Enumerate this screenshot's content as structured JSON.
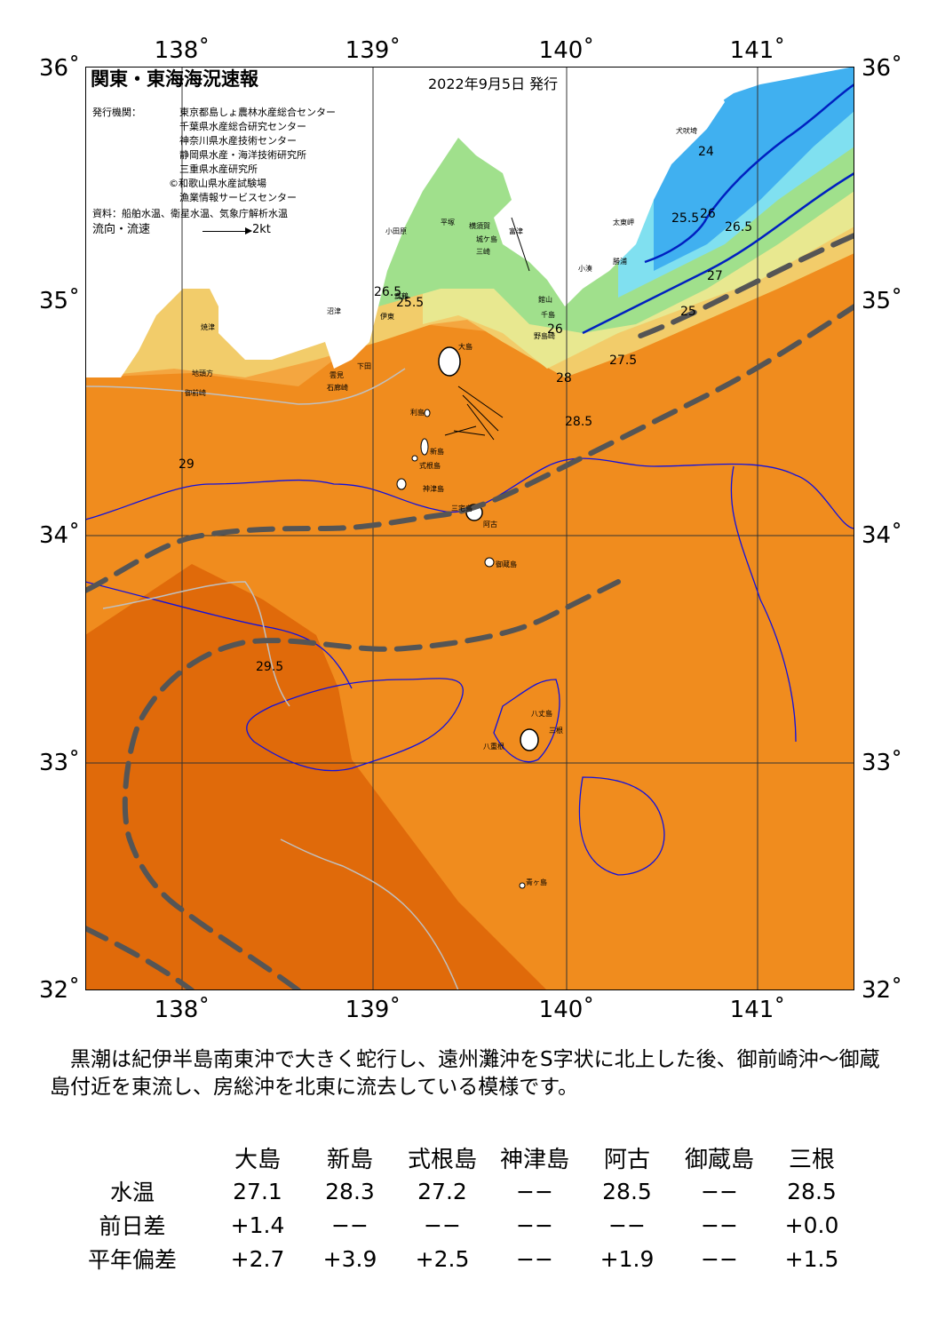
{
  "map": {
    "title": "関東・東海海況速報",
    "issued": "2022年9月5日 発行",
    "issuers_label": "発行機関：",
    "issuers": [
      "東京都島しょ農林水産総合センター",
      "千葉県水産総合研究センター",
      "神奈川県水産技術センター",
      "静岡県水産・海洋技術研究所",
      "三重県水産研究所",
      "©和歌山県水産試験場",
      "漁業情報サービスセンター"
    ],
    "source": "資料：船舶水温、衛星水温、気象庁解析水温",
    "current_label": "流向・流速",
    "current_scale": "2kt",
    "lon_labels": [
      "138˚",
      "139˚",
      "140˚",
      "141˚"
    ],
    "lat_labels": [
      "36˚",
      "35˚",
      "34˚",
      "33˚",
      "32˚"
    ],
    "place_names": [
      "犬吠埼",
      "太東岬",
      "勝浦",
      "小湊",
      "館山",
      "千島",
      "野島崎",
      "富津",
      "横須賀",
      "城ケ島",
      "三崎",
      "平塚",
      "小田原",
      "真鶴",
      "伊東",
      "沼津",
      "焼津",
      "御前崎",
      "地頭方",
      "雲見",
      "下田",
      "石廊崎",
      "大島",
      "利島",
      "新島",
      "式根島",
      "神津島",
      "三宅島",
      "阿古",
      "御蔵島",
      "八丈島",
      "三根",
      "八重根",
      "青ヶ島"
    ],
    "contour_labels": [
      "24",
      "25.5",
      "26",
      "26.5",
      "27",
      "27.5",
      "28",
      "28.5",
      "29",
      "29.5",
      "25",
      "25.5",
      "26",
      "26.5"
    ],
    "colors": {
      "ocean_29_plus": "#f08c1e",
      "ocean_29_5_plus": "#e06a0a",
      "ocean_28": "#f4a640",
      "ocean_27": "#f2cc6a",
      "ocean_26": "#e8e890",
      "ocean_25": "#a0e08c",
      "ocean_24": "#80e0f0",
      "ocean_23": "#40b0f0",
      "kuroshio_axis": "#555555",
      "contour": "#1010e0"
    }
  },
  "summary": "　黒潮は紀伊半島南東沖で大きく蛇行し、遠州灘沖をS字状に北上した後、御前崎沖～御蔵島付近を東流し、房総沖を北東に流去している模様です。",
  "table": {
    "columns": [
      "大島",
      "新島",
      "式根島",
      "神津島",
      "阿古",
      "御蔵島",
      "三根"
    ],
    "rows": [
      {
        "label": "水温",
        "values": [
          "27.1",
          "28.3",
          "27.2",
          "−−",
          "28.5",
          "−−",
          "28.5"
        ]
      },
      {
        "label": "前日差",
        "values": [
          "+1.4",
          "−−",
          "−−",
          "−−",
          "−−",
          "−−",
          "+0.0"
        ]
      },
      {
        "label": "平年偏差",
        "values": [
          "+2.7",
          "+3.9",
          "+2.5",
          "−−",
          "+1.9",
          "−−",
          "+1.5"
        ]
      }
    ]
  }
}
